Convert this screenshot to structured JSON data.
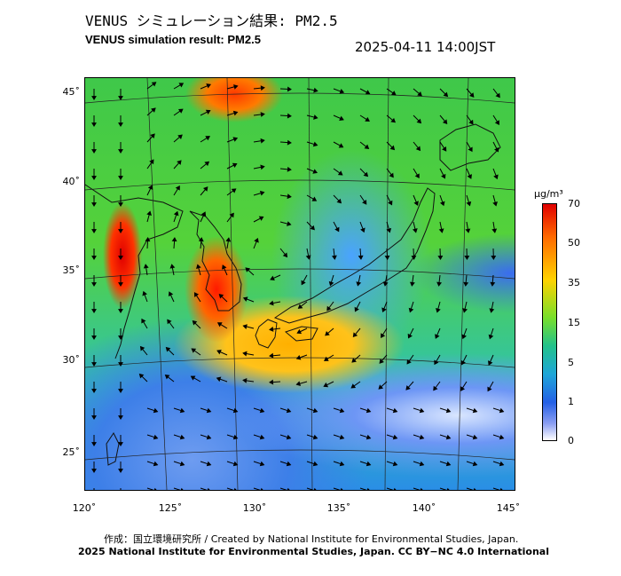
{
  "title_jp": "VENUS シミュレーション結果: PM2.5",
  "title_en": "VENUS simulation result: PM2.5",
  "timestamp": "2025-04-11 14:00JST",
  "map": {
    "latitude_labels": [
      "45˚",
      "40˚",
      "35˚",
      "30˚",
      "25˚"
    ],
    "longitude_labels": [
      "120˚",
      "125˚",
      "130˚",
      "135˚",
      "140˚",
      "145˚"
    ]
  },
  "legend": {
    "unit": "μg/m³",
    "values": [
      "70",
      "50",
      "35",
      "15",
      "5",
      "1",
      "0"
    ],
    "colors": [
      "#e00000",
      "#ff6a00",
      "#ffd200",
      "#79df2a",
      "#22c28a",
      "#1ea6d8",
      "#2460e6",
      "#ffffff"
    ]
  },
  "credit_line_1": "作成：国立環境研究所 / Created by National Institute for Environmental Studies, Japan.",
  "credit_line_2": "2025 National Institute for Environmental Studies, Japan. CC BY−NC 4.0 International"
}
